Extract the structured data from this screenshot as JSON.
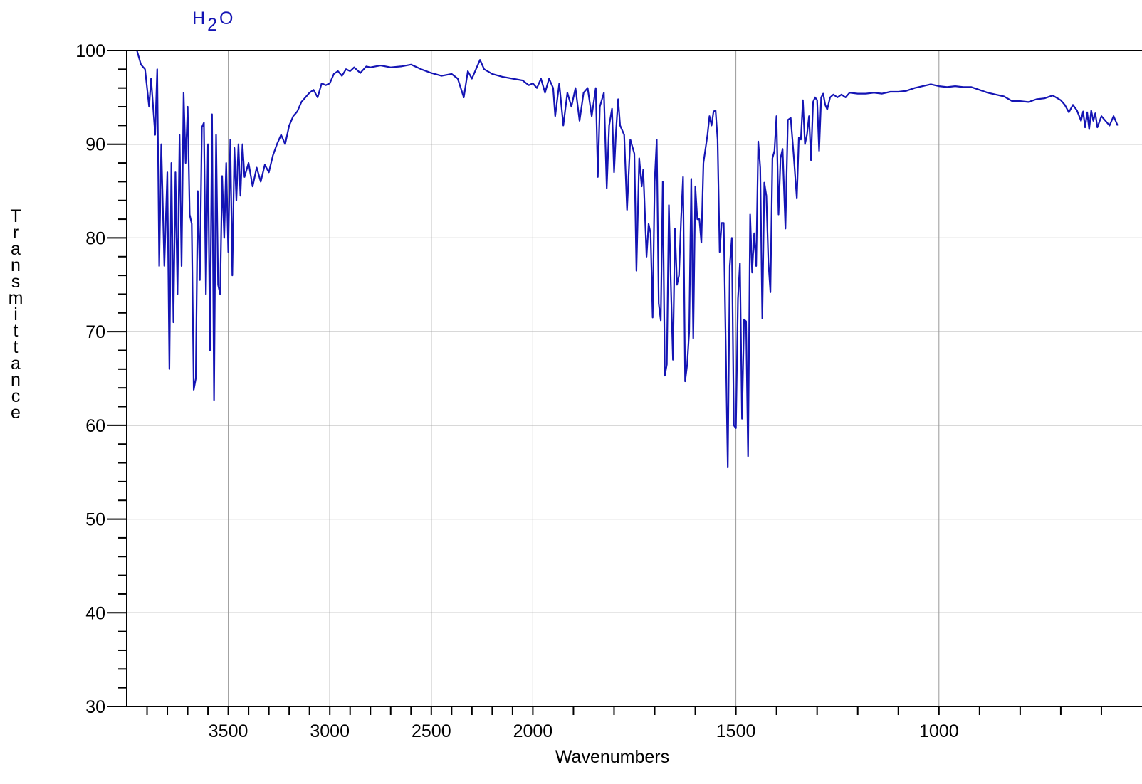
{
  "chart_data": {
    "type": "line",
    "title": "H2O",
    "xlabel": "Wavenumbers",
    "ylabel": "Transmittance",
    "color": "#1414b4",
    "grid": true,
    "xlim": [
      4000,
      500
    ],
    "xbreak": 2000,
    "xexpansion": 2,
    "ylim": [
      30,
      100
    ],
    "yticks": [
      30,
      40,
      50,
      60,
      70,
      80,
      90,
      100
    ],
    "yminorticks": [
      32,
      34,
      36,
      38,
      42,
      44,
      46,
      48,
      52,
      54,
      56,
      58,
      62,
      64,
      66,
      68,
      72,
      74,
      76,
      78,
      82,
      84,
      86,
      88,
      92,
      94,
      96,
      98
    ],
    "xticks": [
      3500,
      3000,
      2500,
      2000,
      1500,
      1000
    ],
    "xminorticks": [
      3900,
      3800,
      3700,
      3600,
      3400,
      3300,
      3200,
      3100,
      2900,
      2800,
      2700,
      2600,
      2400,
      2300,
      2200,
      2100,
      1900,
      1800,
      1700,
      1600,
      1400,
      1300,
      1200,
      1100,
      900,
      800,
      700,
      600
    ],
    "x": [
      3950,
      3930,
      3910,
      3890,
      3880,
      3860,
      3850,
      3840,
      3830,
      3815,
      3800,
      3790,
      3780,
      3770,
      3760,
      3750,
      3740,
      3730,
      3720,
      3710,
      3700,
      3690,
      3680,
      3670,
      3660,
      3650,
      3640,
      3630,
      3620,
      3610,
      3600,
      3590,
      3580,
      3570,
      3560,
      3550,
      3540,
      3530,
      3520,
      3510,
      3500,
      3490,
      3480,
      3470,
      3460,
      3450,
      3440,
      3430,
      3420,
      3400,
      3380,
      3360,
      3340,
      3320,
      3300,
      3280,
      3260,
      3240,
      3220,
      3200,
      3180,
      3160,
      3140,
      3120,
      3100,
      3080,
      3060,
      3040,
      3020,
      3000,
      2980,
      2960,
      2940,
      2920,
      2900,
      2880,
      2850,
      2820,
      2800,
      2750,
      2700,
      2650,
      2600,
      2550,
      2500,
      2450,
      2400,
      2370,
      2340,
      2320,
      2300,
      2280,
      2260,
      2240,
      2200,
      2150,
      2100,
      2050,
      2020,
      2000,
      1990,
      1980,
      1970,
      1960,
      1950,
      1945,
      1935,
      1925,
      1915,
      1905,
      1895,
      1885,
      1875,
      1865,
      1855,
      1845,
      1840,
      1835,
      1825,
      1818,
      1812,
      1805,
      1800,
      1795,
      1790,
      1785,
      1775,
      1768,
      1760,
      1750,
      1745,
      1738,
      1732,
      1728,
      1720,
      1715,
      1710,
      1705,
      1700,
      1695,
      1690,
      1685,
      1680,
      1675,
      1670,
      1665,
      1660,
      1655,
      1650,
      1645,
      1640,
      1635,
      1630,
      1625,
      1620,
      1615,
      1610,
      1605,
      1600,
      1595,
      1590,
      1585,
      1580,
      1570,
      1565,
      1560,
      1555,
      1550,
      1545,
      1540,
      1535,
      1530,
      1520,
      1515,
      1510,
      1505,
      1500,
      1495,
      1490,
      1485,
      1480,
      1475,
      1470,
      1465,
      1460,
      1455,
      1450,
      1445,
      1440,
      1435,
      1430,
      1425,
      1420,
      1415,
      1410,
      1405,
      1400,
      1395,
      1390,
      1385,
      1378,
      1372,
      1365,
      1358,
      1350,
      1345,
      1340,
      1335,
      1330,
      1325,
      1320,
      1315,
      1310,
      1305,
      1300,
      1295,
      1290,
      1285,
      1280,
      1275,
      1268,
      1260,
      1250,
      1240,
      1230,
      1220,
      1200,
      1180,
      1160,
      1140,
      1120,
      1100,
      1080,
      1060,
      1040,
      1020,
      1000,
      980,
      960,
      940,
      920,
      900,
      880,
      860,
      840,
      820,
      800,
      780,
      760,
      740,
      720,
      700,
      690,
      680,
      670,
      660,
      650,
      645,
      640,
      635,
      630,
      625,
      620,
      615,
      610,
      600,
      590,
      580,
      570,
      560
    ],
    "values": [
      100,
      98.5,
      98,
      94,
      97,
      91,
      98,
      77,
      90,
      77,
      87,
      66,
      88,
      71,
      87,
      74,
      91,
      77,
      95.5,
      88,
      94,
      82.5,
      81.5,
      63.8,
      65,
      85,
      75.5,
      91.8,
      92.3,
      74,
      90,
      68,
      93.2,
      62.7,
      91,
      75,
      74,
      86.6,
      80,
      88,
      78.5,
      90.5,
      76,
      89.6,
      84,
      90,
      84.5,
      90,
      86.5,
      88,
      85.5,
      87.5,
      86,
      87.8,
      87,
      88.8,
      90,
      91,
      90,
      92,
      93,
      93.5,
      94.5,
      95,
      95.5,
      95.8,
      95,
      96.5,
      96.3,
      96.5,
      97.5,
      97.8,
      97.3,
      98,
      97.8,
      98.2,
      97.6,
      98.3,
      98.2,
      98.4,
      98.2,
      98.3,
      98.5,
      98,
      97.6,
      97.3,
      97.5,
      97,
      95,
      97.8,
      97,
      98,
      99,
      98,
      97.5,
      97.2,
      97,
      96.8,
      96.3,
      96.5,
      96,
      97,
      95.5,
      97,
      96,
      93,
      96.5,
      92,
      95.5,
      94,
      96,
      92.5,
      95.5,
      96,
      93,
      96,
      86.5,
      94,
      95.5,
      85.3,
      92,
      93.8,
      87,
      91.5,
      94.8,
      92,
      91,
      83,
      90.5,
      89,
      76.5,
      88.5,
      85.5,
      87.3,
      78,
      81.5,
      80.5,
      71.5,
      86,
      90.5,
      73,
      71.2,
      86,
      65.3,
      66.5,
      83.5,
      75,
      67,
      81,
      75,
      76,
      82,
      86.5,
      64.7,
      66.5,
      70,
      86.3,
      69.3,
      85.5,
      82,
      82,
      79.5,
      88,
      91,
      93,
      92,
      93.5,
      93.6,
      90.5,
      78.5,
      81.6,
      81.6,
      55.5,
      77,
      80,
      60,
      59.7,
      73.5,
      77.3,
      60.7,
      71.3,
      71.1,
      56.7,
      82.5,
      76.3,
      80.5,
      77,
      90.3,
      87.5,
      71.4,
      85.9,
      84.5,
      77.5,
      74.2,
      88.5,
      89.3,
      93,
      82.5,
      88.5,
      89.5,
      81,
      92.6,
      92.8,
      89,
      84.2,
      90.7,
      90.5,
      94.7,
      90,
      91,
      93,
      88.3,
      94.5,
      95,
      94.7,
      89.3,
      95,
      95.4,
      94.2,
      93.7,
      95,
      95.3,
      95,
      95.3,
      95,
      95.5,
      95.4,
      95.4,
      95.5,
      95.4,
      95.6,
      95.6,
      95.7,
      96,
      96.2,
      96.4,
      96.2,
      96.1,
      96.2,
      96.1,
      96.1,
      95.8,
      95.5,
      95.3,
      95.1,
      94.6,
      94.6,
      94.5,
      94.8,
      94.9,
      95.2,
      94.7,
      94.2,
      93.4,
      94.2,
      93.6,
      92.5,
      93.5,
      91.8,
      93.4,
      91.6,
      93.6,
      92.5,
      93.3,
      91.8,
      93,
      92.5,
      92,
      93,
      92
    ]
  }
}
